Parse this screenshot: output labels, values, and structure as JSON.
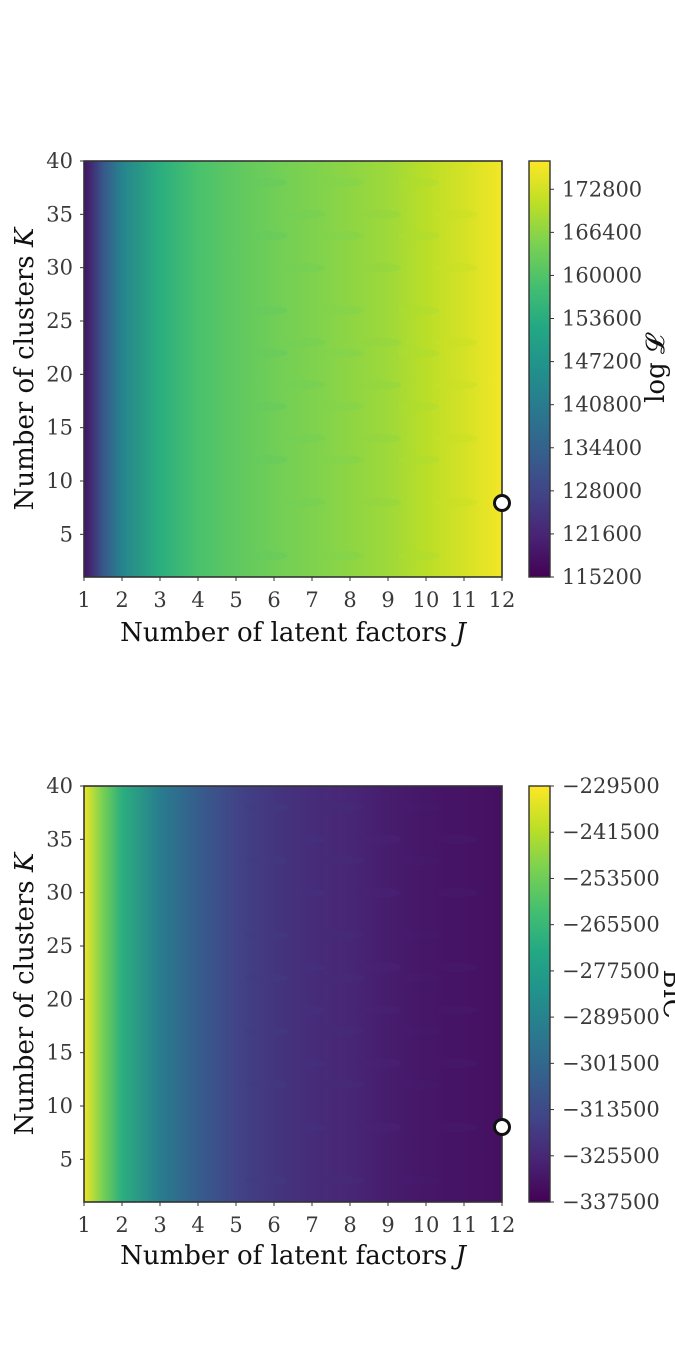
{
  "chart_data": [
    {
      "type": "heatmap",
      "xlabel": "Number of latent factors",
      "xlabel_symbol": "J",
      "ylabel": "Number of clusters",
      "ylabel_symbol": "K",
      "x_ticks": [
        "1",
        "2",
        "3",
        "4",
        "5",
        "6",
        "7",
        "8",
        "9",
        "10",
        "11",
        "12"
      ],
      "y_ticks": [
        "5",
        "10",
        "15",
        "20",
        "25",
        "30",
        "35",
        "40"
      ],
      "xlim": [
        1,
        12
      ],
      "ylim": [
        1,
        40
      ],
      "colorbar_label": "log 𝓛",
      "colorbar_ticks": [
        "172800",
        "166400",
        "160000",
        "153600",
        "147200",
        "140800",
        "134400",
        "128000",
        "121600",
        "115200"
      ],
      "colorbar_range": [
        115200,
        177000
      ],
      "colormap": "viridis",
      "trend": "increasing with J",
      "optimum_marker": {
        "J": 12,
        "K": 8
      },
      "approx_values_by_J": {
        "J": [
          1,
          1.5,
          2,
          3,
          4,
          5,
          6,
          7,
          8,
          9,
          10,
          11,
          12
        ],
        "value": [
          118000,
          132000,
          143000,
          154000,
          159000,
          161500,
          163500,
          165000,
          166500,
          168000,
          170500,
          173000,
          176000
        ]
      }
    },
    {
      "type": "heatmap",
      "xlabel": "Number of latent factors",
      "xlabel_symbol": "J",
      "ylabel": "Number of clusters",
      "ylabel_symbol": "K",
      "x_ticks": [
        "1",
        "2",
        "3",
        "4",
        "5",
        "6",
        "7",
        "8",
        "9",
        "10",
        "11",
        "12"
      ],
      "y_ticks": [
        "5",
        "10",
        "15",
        "20",
        "25",
        "30",
        "35",
        "40"
      ],
      "xlim": [
        1,
        12
      ],
      "ylim": [
        1,
        40
      ],
      "colorbar_label": "BIC",
      "colorbar_ticks": [
        "−229500",
        "−241500",
        "−253500",
        "−265500",
        "−277500",
        "−289500",
        "−301500",
        "−313500",
        "−325500",
        "−337500"
      ],
      "colorbar_range": [
        -337500,
        -229500
      ],
      "colormap": "viridis",
      "trend": "decreasing with J",
      "optimum_marker": {
        "J": 12,
        "K": 8
      },
      "approx_values_by_J": {
        "J": [
          1,
          1.5,
          2,
          3,
          4,
          5,
          6,
          7,
          8,
          9,
          10,
          11,
          12
        ],
        "value": [
          -232000,
          -252000,
          -270000,
          -292000,
          -306000,
          -316000,
          -321000,
          -324000,
          -326000,
          -329000,
          -331000,
          -332000,
          -333000
        ]
      }
    }
  ]
}
